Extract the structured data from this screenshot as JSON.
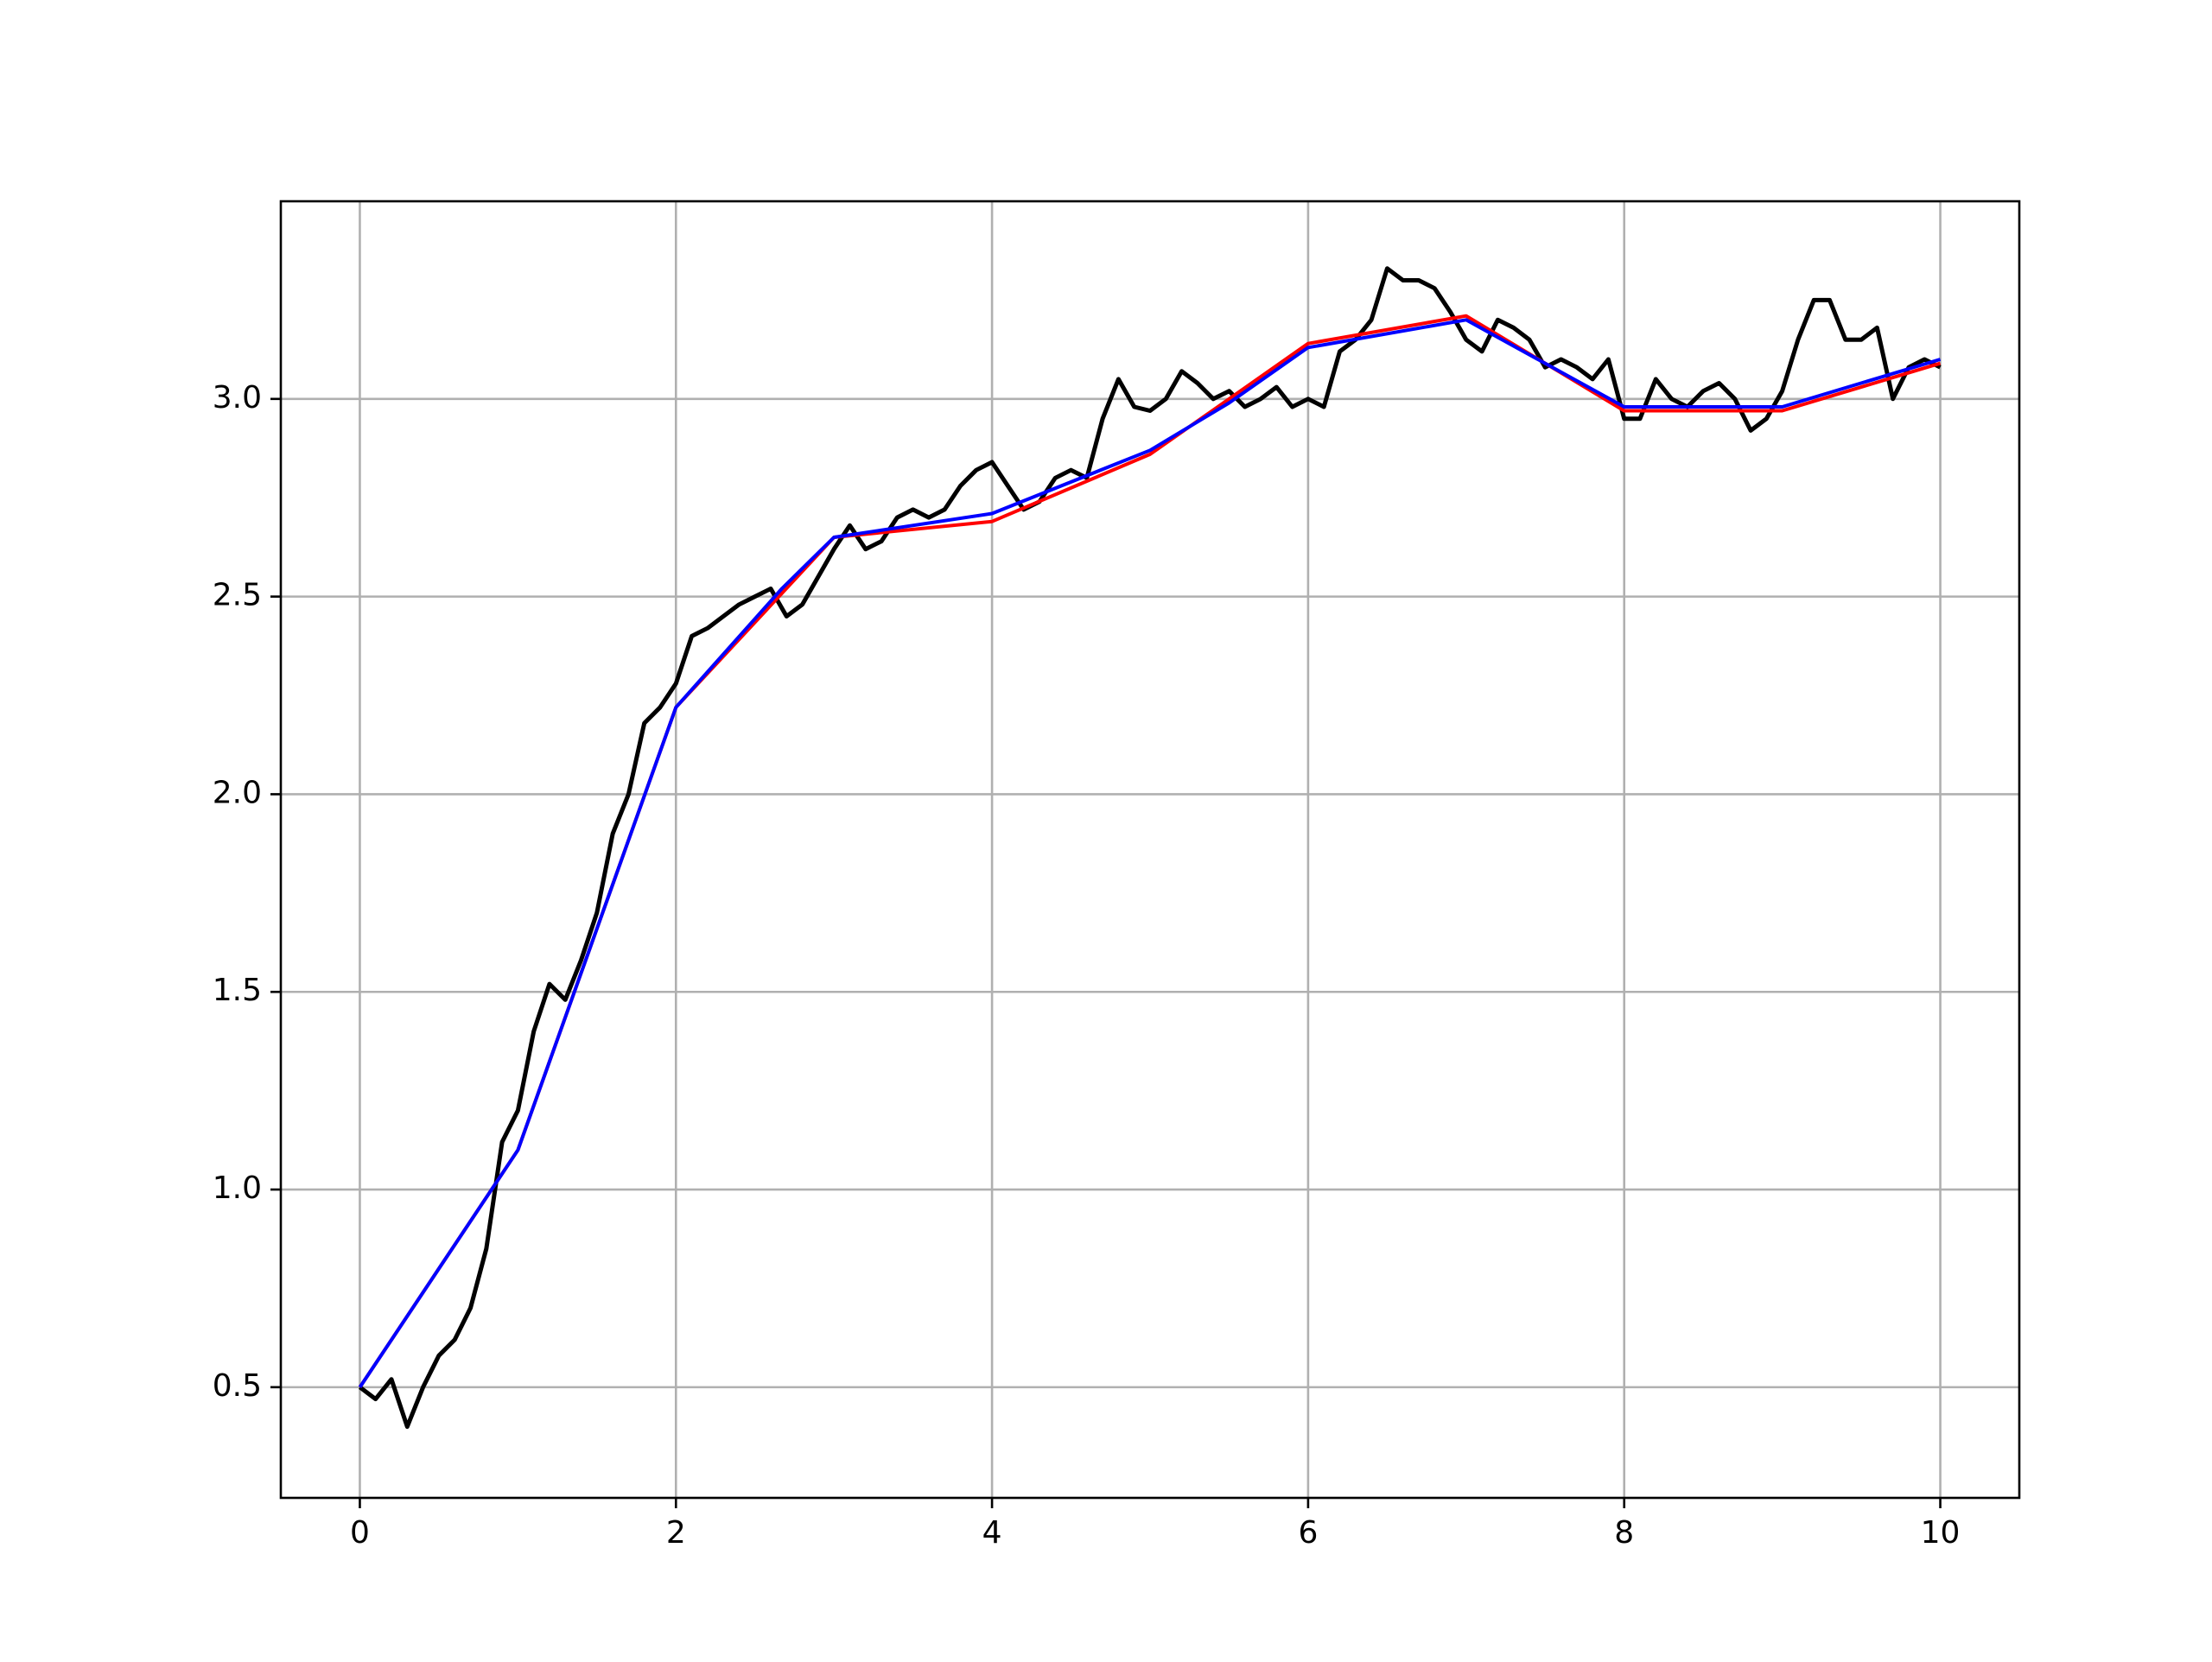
{
  "chart_data": {
    "type": "line",
    "xlim": [
      -0.5,
      10.5
    ],
    "ylim": [
      0.22,
      3.5
    ],
    "xticks": [
      0,
      2,
      4,
      6,
      8,
      10
    ],
    "yticks": [
      0.5,
      {
        "value": 1.0,
        "label": "1.0"
      },
      1.5,
      {
        "value": 2.0,
        "label": "2.0"
      },
      2.5,
      {
        "value": 3.0,
        "label": "3.0"
      }
    ],
    "grid": true,
    "series": [
      {
        "color": "#000000",
        "x": [
          0,
          0.1,
          0.2,
          0.3,
          0.4,
          0.5,
          0.6,
          0.7,
          0.8,
          0.9,
          1.0,
          1.1,
          1.2,
          1.3,
          1.4,
          1.5,
          1.6,
          1.7,
          1.8,
          1.9,
          2.0,
          2.1,
          2.2,
          2.3,
          2.4,
          2.5,
          2.6,
          2.7,
          2.8,
          2.9,
          3.0,
          3.1,
          3.2,
          3.3,
          3.4,
          3.5,
          3.6,
          3.7,
          3.8,
          3.9,
          4.0,
          4.1,
          4.2,
          4.3,
          4.4,
          4.5,
          4.6,
          4.7,
          4.8,
          4.9,
          5.0,
          5.1,
          5.2,
          5.3,
          5.4,
          5.5,
          5.6,
          5.7,
          5.8,
          5.9,
          6.0,
          6.1,
          6.2,
          6.3,
          6.4,
          6.5,
          6.6,
          6.7,
          6.8,
          6.9,
          7.0,
          7.1,
          7.2,
          7.3,
          7.4,
          7.5,
          7.6,
          7.7,
          7.8,
          7.9,
          8.0,
          8.1,
          8.2,
          8.3,
          8.4,
          8.5,
          8.6,
          8.7,
          8.8,
          8.9,
          9.0,
          9.1,
          9.2,
          9.3,
          9.4,
          9.5,
          9.6,
          9.7,
          9.8,
          9.9,
          10.0
        ],
        "values": [
          0.5,
          0.47,
          0.52,
          0.4,
          0.5,
          0.58,
          0.62,
          0.7,
          0.85,
          1.12,
          1.2,
          1.4,
          1.52,
          1.48,
          1.58,
          1.7,
          1.9,
          2.0,
          2.18,
          2.22,
          2.28,
          2.4,
          2.42,
          2.45,
          2.48,
          2.5,
          2.52,
          2.45,
          2.48,
          2.55,
          2.62,
          2.68,
          2.62,
          2.64,
          2.7,
          2.72,
          2.7,
          2.72,
          2.78,
          2.82,
          2.84,
          2.78,
          2.72,
          2.74,
          2.8,
          2.82,
          2.8,
          2.95,
          3.05,
          2.98,
          2.97,
          3.0,
          3.07,
          3.04,
          3.0,
          3.02,
          2.98,
          3.0,
          3.03,
          2.98,
          3.0,
          2.98,
          3.12,
          3.15,
          3.2,
          3.33,
          3.3,
          3.3,
          3.28,
          3.22,
          3.15,
          3.12,
          3.2,
          3.18,
          3.15,
          3.08,
          3.1,
          3.08,
          3.05,
          3.1,
          2.95,
          2.95,
          3.05,
          3.0,
          2.98,
          3.02,
          3.04,
          3.0,
          2.92,
          2.95,
          3.02,
          3.15,
          3.25,
          3.25,
          3.15,
          3.15,
          3.18,
          3.0,
          3.08,
          3.1,
          3.08
        ]
      },
      {
        "color": "#ff0000",
        "x": [
          0,
          1,
          2,
          3,
          4,
          5,
          6,
          7,
          8,
          9,
          10
        ],
        "values": [
          0.5,
          1.1,
          2.22,
          2.65,
          2.69,
          2.86,
          3.14,
          3.21,
          2.97,
          2.97,
          3.09
        ]
      },
      {
        "color": "#0000ff",
        "x": [
          0,
          1,
          2,
          2.67,
          3,
          4,
          5,
          5.5,
          6,
          7,
          8,
          9,
          10
        ],
        "values": [
          0.5,
          1.1,
          2.22,
          2.52,
          2.65,
          2.71,
          2.87,
          2.99,
          3.13,
          3.2,
          2.98,
          2.98,
          3.1
        ]
      }
    ]
  }
}
